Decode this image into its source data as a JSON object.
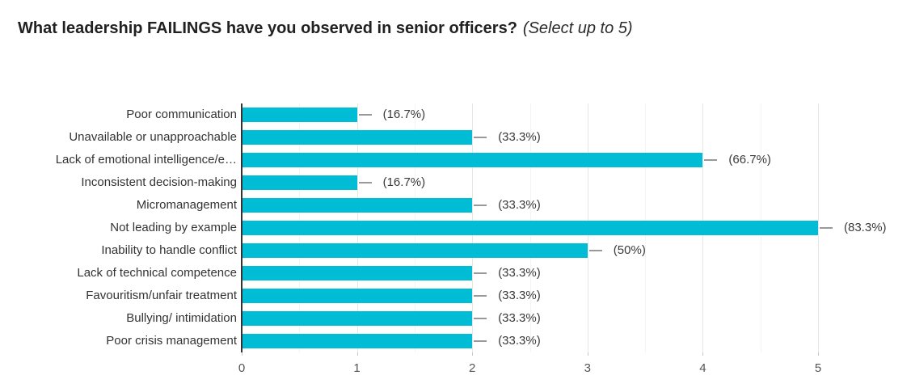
{
  "header": {
    "title_bold": "What leadership FAILINGS have you observed in senior officers?",
    "title_suffix": "(Select up to 5)"
  },
  "chart_data": {
    "type": "bar",
    "orientation": "horizontal",
    "title": "What leadership FAILINGS have you observed in senior officers? (Select up to 5)",
    "categories": [
      "Poor communication",
      "Unavailable or unapproachable",
      "Lack of emotional intelligence/e…",
      "Inconsistent decision-making",
      "Micromanagement",
      "Not leading by example",
      "Inability to handle conflict",
      "Lack of technical competence",
      "Favouritism/unfair treatment",
      "Bullying/ intimidation",
      "Poor crisis management"
    ],
    "values": [
      1,
      2,
      4,
      1,
      2,
      5,
      3,
      2,
      2,
      2,
      2
    ],
    "percent_labels": [
      "(16.7%)",
      "(33.3%)",
      "(66.7%)",
      "(16.7%)",
      "(33.3%)",
      "(83.3%)",
      "(50%)",
      "(33.3%)",
      "(33.3%)",
      "(33.3%)",
      "(33.3%)"
    ],
    "x_ticks": [
      "0",
      "1",
      "2",
      "3",
      "4",
      "5"
    ],
    "xlim": [
      0,
      5
    ],
    "xlabel": "",
    "ylabel": "",
    "grid": true,
    "legend": "none",
    "bar_color": "#00BCD4",
    "axis_line_color": "#333333",
    "stem_color": "#999999",
    "major_grid_color": "#e6e6e6",
    "minor_grid_color": "#f4f4f4",
    "tick_label_color": "#555555"
  }
}
